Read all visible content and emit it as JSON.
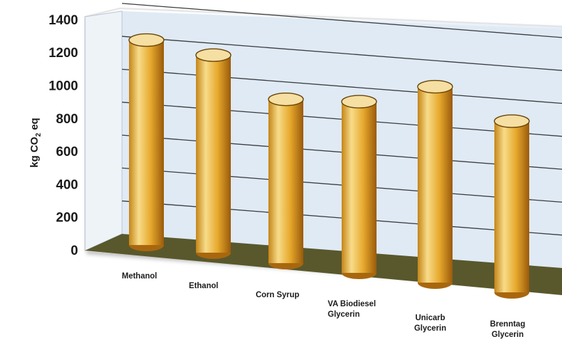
{
  "chart_data": {
    "type": "bar",
    "style": "3d-cylinder",
    "ylabel": "kg CO₂ eq",
    "ylabel_parts": {
      "before": "kg CO",
      "sub": "2",
      "after": " eq"
    },
    "ylim": [
      0,
      1400
    ],
    "yticks": [
      0,
      200,
      400,
      600,
      800,
      1000,
      1200,
      1400
    ],
    "categories": [
      [
        "Methanol"
      ],
      [
        "Ethanol"
      ],
      [
        "Corn Syrup"
      ],
      [
        "VA Biodiesel",
        "Glycerin"
      ],
      [
        "Unicarb",
        "Glycerin"
      ],
      [
        "Brenntag",
        "Glycerin"
      ]
    ],
    "values": [
      1245,
      1200,
      995,
      1040,
      1190,
      1040
    ],
    "grid": true,
    "colors": {
      "back_wall": "#dde9f4",
      "floor": "#59582c",
      "bar_light": "#f7dc8a",
      "bar_mid": "#e7a92d",
      "bar_dark": "#9a5a0b",
      "bar_top": "#f6dfa2"
    }
  }
}
